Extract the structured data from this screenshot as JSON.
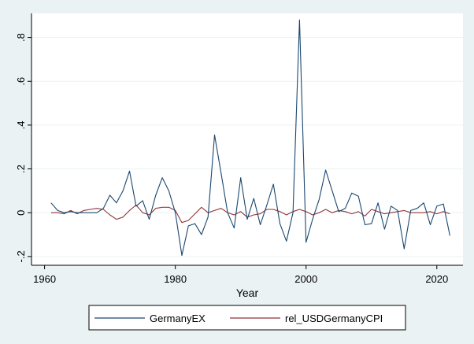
{
  "chart_data": {
    "type": "line",
    "xlabel": "Year",
    "ylabel": "",
    "xlim": [
      1958,
      2024
    ],
    "ylim": [
      -0.24,
      0.91
    ],
    "x_ticks": [
      1960,
      1980,
      2000,
      2020
    ],
    "x_tick_labels": [
      "1960",
      "1980",
      "2000",
      "2020"
    ],
    "y_ticks": [
      -0.2,
      0,
      0.2,
      0.4,
      0.6,
      0.8
    ],
    "y_tick_labels": [
      "-.2",
      "0",
      ".2",
      ".4",
      ".6",
      ".8"
    ],
    "grid": "horizontal",
    "legend_position": "bottom",
    "series": [
      {
        "name": "GermanyEX",
        "color": "#1a476f",
        "x": [
          1961,
          1962,
          1963,
          1964,
          1965,
          1966,
          1967,
          1968,
          1969,
          1970,
          1971,
          1972,
          1973,
          1974,
          1975,
          1976,
          1977,
          1978,
          1979,
          1980,
          1981,
          1982,
          1983,
          1984,
          1985,
          1986,
          1987,
          1988,
          1989,
          1990,
          1991,
          1992,
          1993,
          1994,
          1995,
          1996,
          1997,
          1998,
          1999,
          2000,
          2001,
          2002,
          2003,
          2004,
          2005,
          2006,
          2007,
          2008,
          2009,
          2010,
          2011,
          2012,
          2013,
          2014,
          2015,
          2016,
          2017,
          2018,
          2019,
          2020,
          2021,
          2022
        ],
        "values": [
          0.045,
          0.01,
          0.0,
          0.005,
          0.0,
          0.0,
          0.0,
          0.0,
          0.02,
          0.08,
          0.045,
          0.1,
          0.19,
          0.03,
          0.055,
          -0.03,
          0.08,
          0.16,
          0.1,
          0.0,
          -0.195,
          -0.06,
          -0.05,
          -0.1,
          -0.02,
          0.355,
          0.18,
          0.0,
          -0.07,
          0.16,
          -0.03,
          0.065,
          -0.055,
          0.035,
          0.13,
          -0.05,
          -0.13,
          0.0,
          0.88,
          -0.135,
          -0.03,
          0.06,
          0.195,
          0.1,
          0.005,
          0.02,
          0.09,
          0.075,
          -0.055,
          -0.05,
          0.045,
          -0.075,
          0.03,
          0.01,
          -0.165,
          0.01,
          0.02,
          0.045,
          -0.055,
          0.03,
          0.04,
          -0.105
        ]
      },
      {
        "name": "rel_USDGermanyCPI",
        "color": "#90353b",
        "x": [
          1961,
          1962,
          1963,
          1964,
          1965,
          1966,
          1967,
          1968,
          1969,
          1970,
          1971,
          1972,
          1973,
          1974,
          1975,
          1976,
          1977,
          1978,
          1979,
          1980,
          1981,
          1982,
          1983,
          1984,
          1985,
          1986,
          1987,
          1988,
          1989,
          1990,
          1991,
          1992,
          1993,
          1994,
          1995,
          1996,
          1997,
          1998,
          1999,
          2000,
          2001,
          2002,
          2003,
          2004,
          2005,
          2006,
          2007,
          2008,
          2009,
          2010,
          2011,
          2012,
          2013,
          2014,
          2015,
          2016,
          2017,
          2018,
          2019,
          2020,
          2021,
          2022
        ],
        "values": [
          0.0,
          0.0,
          -0.005,
          0.01,
          -0.005,
          0.01,
          0.015,
          0.02,
          0.015,
          -0.01,
          -0.03,
          -0.02,
          0.01,
          0.035,
          0.0,
          -0.01,
          0.02,
          0.025,
          0.025,
          0.01,
          -0.045,
          -0.035,
          -0.005,
          0.025,
          0.0,
          0.01,
          0.02,
          0.0,
          -0.01,
          0.005,
          -0.02,
          -0.01,
          -0.005,
          0.015,
          0.015,
          0.005,
          -0.01,
          0.005,
          0.015,
          0.005,
          -0.01,
          0.0,
          0.015,
          0.0,
          0.01,
          0.005,
          -0.005,
          0.005,
          -0.015,
          0.015,
          0.005,
          -0.005,
          0.0,
          0.005,
          0.01,
          0.0,
          0.0,
          0.0,
          0.005,
          -0.005,
          0.005,
          -0.005
        ]
      }
    ]
  }
}
